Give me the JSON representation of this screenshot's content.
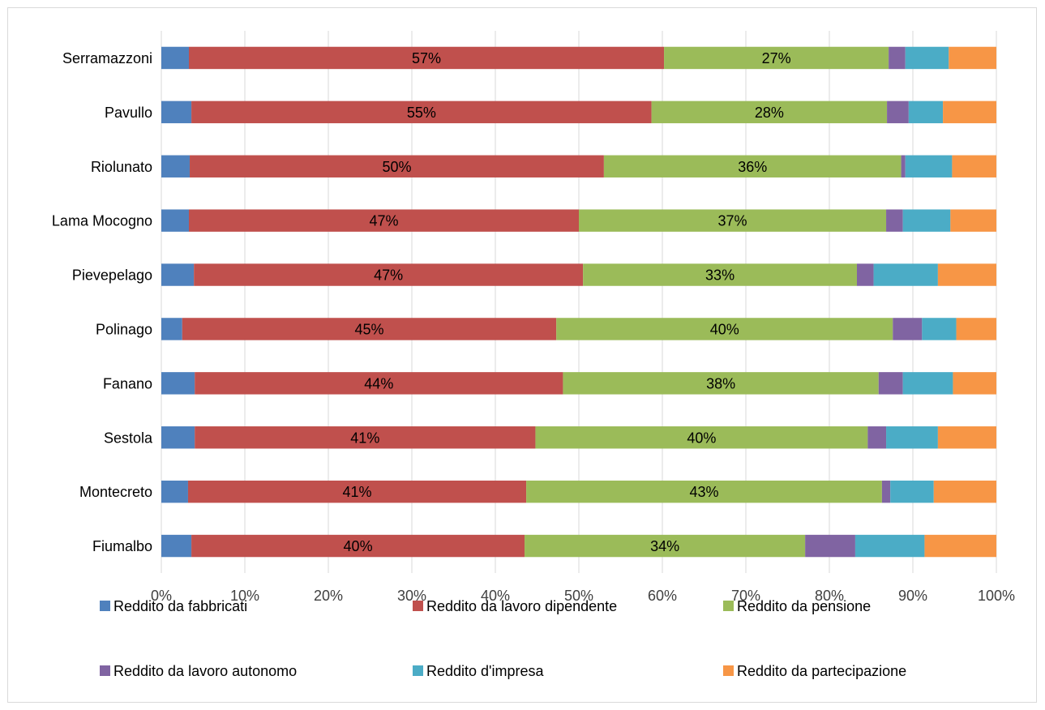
{
  "chart_data": {
    "type": "bar",
    "orientation": "horizontal",
    "stacked": "percent",
    "title": "",
    "xlabel": "",
    "ylabel": "",
    "xlim": [
      0,
      100
    ],
    "x_ticks": [
      "0%",
      "10%",
      "20%",
      "30%",
      "40%",
      "50%",
      "60%",
      "70%",
      "80%",
      "90%",
      "100%"
    ],
    "grid": true,
    "legend_position": "bottom",
    "categories": [
      "Serramazzoni",
      "Pavullo",
      "Riolunato",
      "Lama Mocogno",
      "Pievepelago",
      "Polinago",
      "Fanano",
      "Sestola",
      "Montecreto",
      "Fiumalbo"
    ],
    "series": [
      {
        "name": "Reddito da fabbricati",
        "color": "#4f81bd",
        "show_labels": false,
        "values": [
          3.3,
          3.6,
          3.4,
          3.3,
          3.9,
          2.5,
          4.0,
          4.0,
          3.2,
          3.6
        ]
      },
      {
        "name": "Reddito da lavoro dipendente",
        "color": "#c0504d",
        "show_labels": true,
        "values": [
          56.9,
          55.1,
          49.6,
          46.7,
          46.6,
          44.8,
          44.1,
          40.8,
          40.5,
          39.9
        ],
        "labels": [
          "57%",
          "55%",
          "50%",
          "47%",
          "47%",
          "45%",
          "44%",
          "41%",
          "41%",
          "40%"
        ]
      },
      {
        "name": "Reddito da pensione",
        "color": "#9bbb59",
        "show_labels": true,
        "values": [
          26.9,
          28.2,
          35.6,
          36.8,
          32.8,
          40.3,
          37.8,
          39.8,
          42.6,
          33.6
        ],
        "labels": [
          "27%",
          "28%",
          "36%",
          "37%",
          "33%",
          "40%",
          "38%",
          "40%",
          "43%",
          "34%"
        ]
      },
      {
        "name": "Reddito da lavoro autonomo",
        "color": "#8064a2",
        "show_labels": false,
        "values": [
          2.0,
          2.6,
          0.5,
          2.0,
          2.0,
          3.5,
          2.9,
          2.2,
          1.0,
          6.0
        ]
      },
      {
        "name": "Reddito d'impresa",
        "color": "#4bacc6",
        "show_labels": false,
        "values": [
          5.2,
          4.1,
          5.6,
          5.7,
          7.7,
          4.1,
          6.0,
          6.2,
          5.2,
          8.3
        ]
      },
      {
        "name": "Reddito da partecipazione",
        "color": "#f79646",
        "show_labels": false,
        "values": [
          5.7,
          6.4,
          5.3,
          5.5,
          7.0,
          4.8,
          5.2,
          7.0,
          7.5,
          8.6
        ]
      }
    ]
  }
}
